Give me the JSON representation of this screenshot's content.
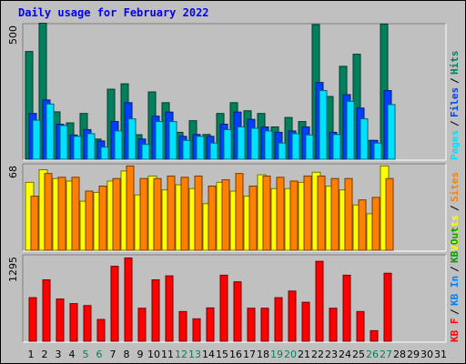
{
  "chart_data": {
    "type": "bar",
    "title": "Daily usage for February 2022",
    "categories": [
      "1",
      "2",
      "3",
      "4",
      "5",
      "6",
      "7",
      "8",
      "9",
      "10",
      "11",
      "12",
      "13",
      "14",
      "15",
      "16",
      "17",
      "18",
      "19",
      "20",
      "21",
      "22",
      "23",
      "24",
      "25",
      "26",
      "27",
      "28",
      "29",
      "30",
      "31"
    ],
    "weekend_days": [
      5,
      6,
      12,
      13,
      19,
      20,
      26,
      27
    ],
    "panels": [
      {
        "id": "hits",
        "ymax_label": "500",
        "ymax": 500,
        "legend": [
          "Pages",
          "Files",
          "Hits"
        ],
        "legend_colors": [
          "#00e0ff",
          "#0040ff",
          "#00805c"
        ],
        "series": [
          {
            "name": "Hits",
            "color": "#00805c",
            "values": [
              400,
              505,
              176,
              135,
              170,
              75,
              260,
              280,
              91,
              250,
              210,
              100,
              143,
              92,
              170,
              210,
              180,
              170,
              120,
              155,
              140,
              500,
              233,
              345,
              390,
              70,
              502,
              null,
              null,
              null,
              null
            ]
          },
          {
            "name": "Files",
            "color": "#0040ff",
            "values": [
              170,
              220,
              130,
              90,
              110,
              68,
              140,
              210,
              75,
              160,
              175,
              85,
              92,
              85,
              130,
              175,
              148,
              120,
              100,
              105,
              120,
              285,
              100,
              240,
              190,
              70,
              255,
              null,
              null,
              null,
              null
            ]
          },
          {
            "name": "Pages",
            "color": "#00e0ff",
            "values": [
              145,
              205,
              125,
              85,
              95,
              45,
              105,
              150,
              55,
              140,
              140,
              70,
              85,
              60,
              110,
              120,
              115,
              105,
              60,
              95,
              90,
              255,
              92,
              215,
              150,
              60,
              203,
              null,
              null,
              null,
              null
            ]
          }
        ]
      },
      {
        "id": "visits",
        "ymax_label": "68",
        "ymax": 68,
        "legend": [
          "Visits",
          "Sites"
        ],
        "legend_colors": [
          "#ffff00",
          "#ff8000"
        ],
        "series": [
          {
            "name": "Visits",
            "color": "#ffff00",
            "values": [
              54,
              64,
              57,
              55,
              39,
              46,
              55,
              63,
              44,
              59,
              48,
              52,
              49,
              37,
              54,
              47,
              43,
              60,
              49,
              49,
              54,
              62,
              51,
              48,
              36,
              29,
              67,
              null,
              null,
              null,
              null
            ]
          },
          {
            "name": "Sites",
            "color": "#ff8000",
            "values": [
              43,
              61,
              58,
              58,
              47,
              51,
              57,
              67,
              57,
              57,
              59,
              58,
              59,
              51,
              56,
              61,
              51,
              59,
              58,
              55,
              59,
              59,
              57,
              57,
              40,
              42,
              57,
              null,
              null,
              null,
              null
            ]
          }
        ]
      },
      {
        "id": "kbytes",
        "ymax_label": "1295",
        "ymax": 1295,
        "legend": [
          "KB F",
          "KB In",
          "KB Out"
        ],
        "legend_colors": [
          "#ff0000",
          "#0080ff",
          "#00a000"
        ],
        "series": [
          {
            "name": "KB F",
            "color": "#ff0000",
            "values": [
              660,
              930,
              640,
              570,
              540,
              330,
              1135,
              1260,
              500,
              930,
              990,
              450,
              340,
              505,
              1000,
              900,
              500,
              500,
              660,
              760,
              590,
              1210,
              500,
              1000,
              450,
              160,
              1030,
              null,
              null,
              null,
              null
            ]
          }
        ]
      }
    ]
  }
}
